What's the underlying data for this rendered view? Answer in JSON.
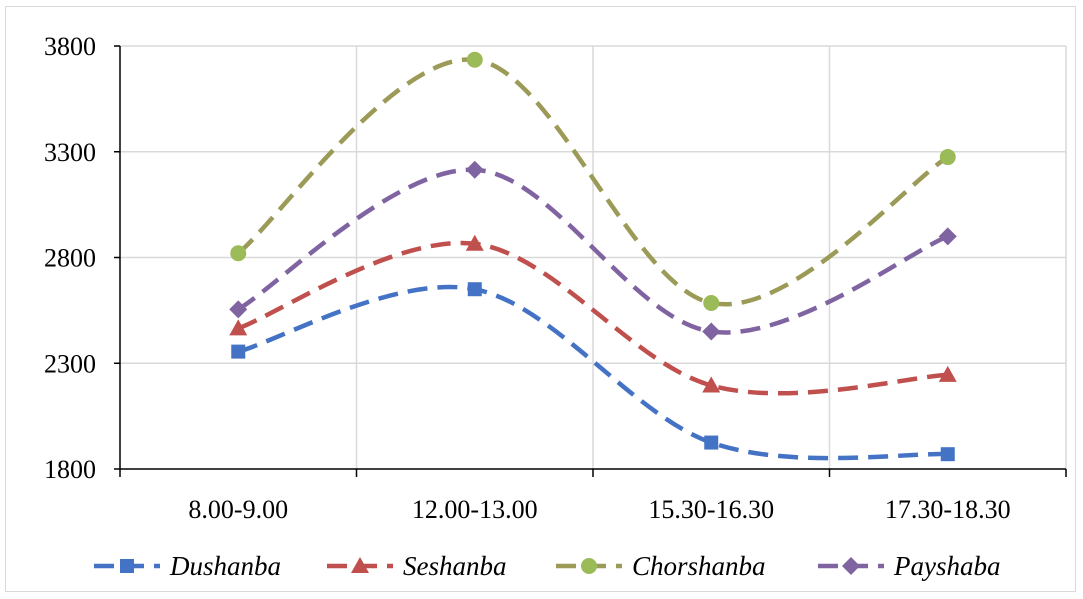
{
  "chart_data": {
    "type": "line",
    "title": "",
    "xlabel": "",
    "ylabel": "",
    "categories": [
      "8.00-9.00",
      "12.00-13.00",
      "15.30-16.30",
      "17.30-18.30"
    ],
    "ylim": [
      1800,
      3800
    ],
    "yticks": [
      "1800",
      "2300",
      "2800",
      "3300",
      "3800"
    ],
    "grid": true,
    "smooth": true,
    "legend_position": "bottom",
    "series": [
      {
        "name": "Dushanba",
        "values": [
          2355,
          2650,
          1925,
          1870
        ],
        "color": "#4472C4",
        "marker": "square"
      },
      {
        "name": "Seshanba",
        "values": [
          2465,
          2865,
          2195,
          2245
        ],
        "color": "#C0504D",
        "marker": "triangle"
      },
      {
        "name": "Chorshanba",
        "values": [
          2820,
          3735,
          2585,
          3275
        ],
        "color": "#9B9A57",
        "marker": "circle",
        "marker_color": "#9BBB59"
      },
      {
        "name": "Payshaba",
        "values": [
          2555,
          3215,
          2450,
          2900
        ],
        "color": "#8064A2",
        "marker": "diamond"
      }
    ]
  }
}
